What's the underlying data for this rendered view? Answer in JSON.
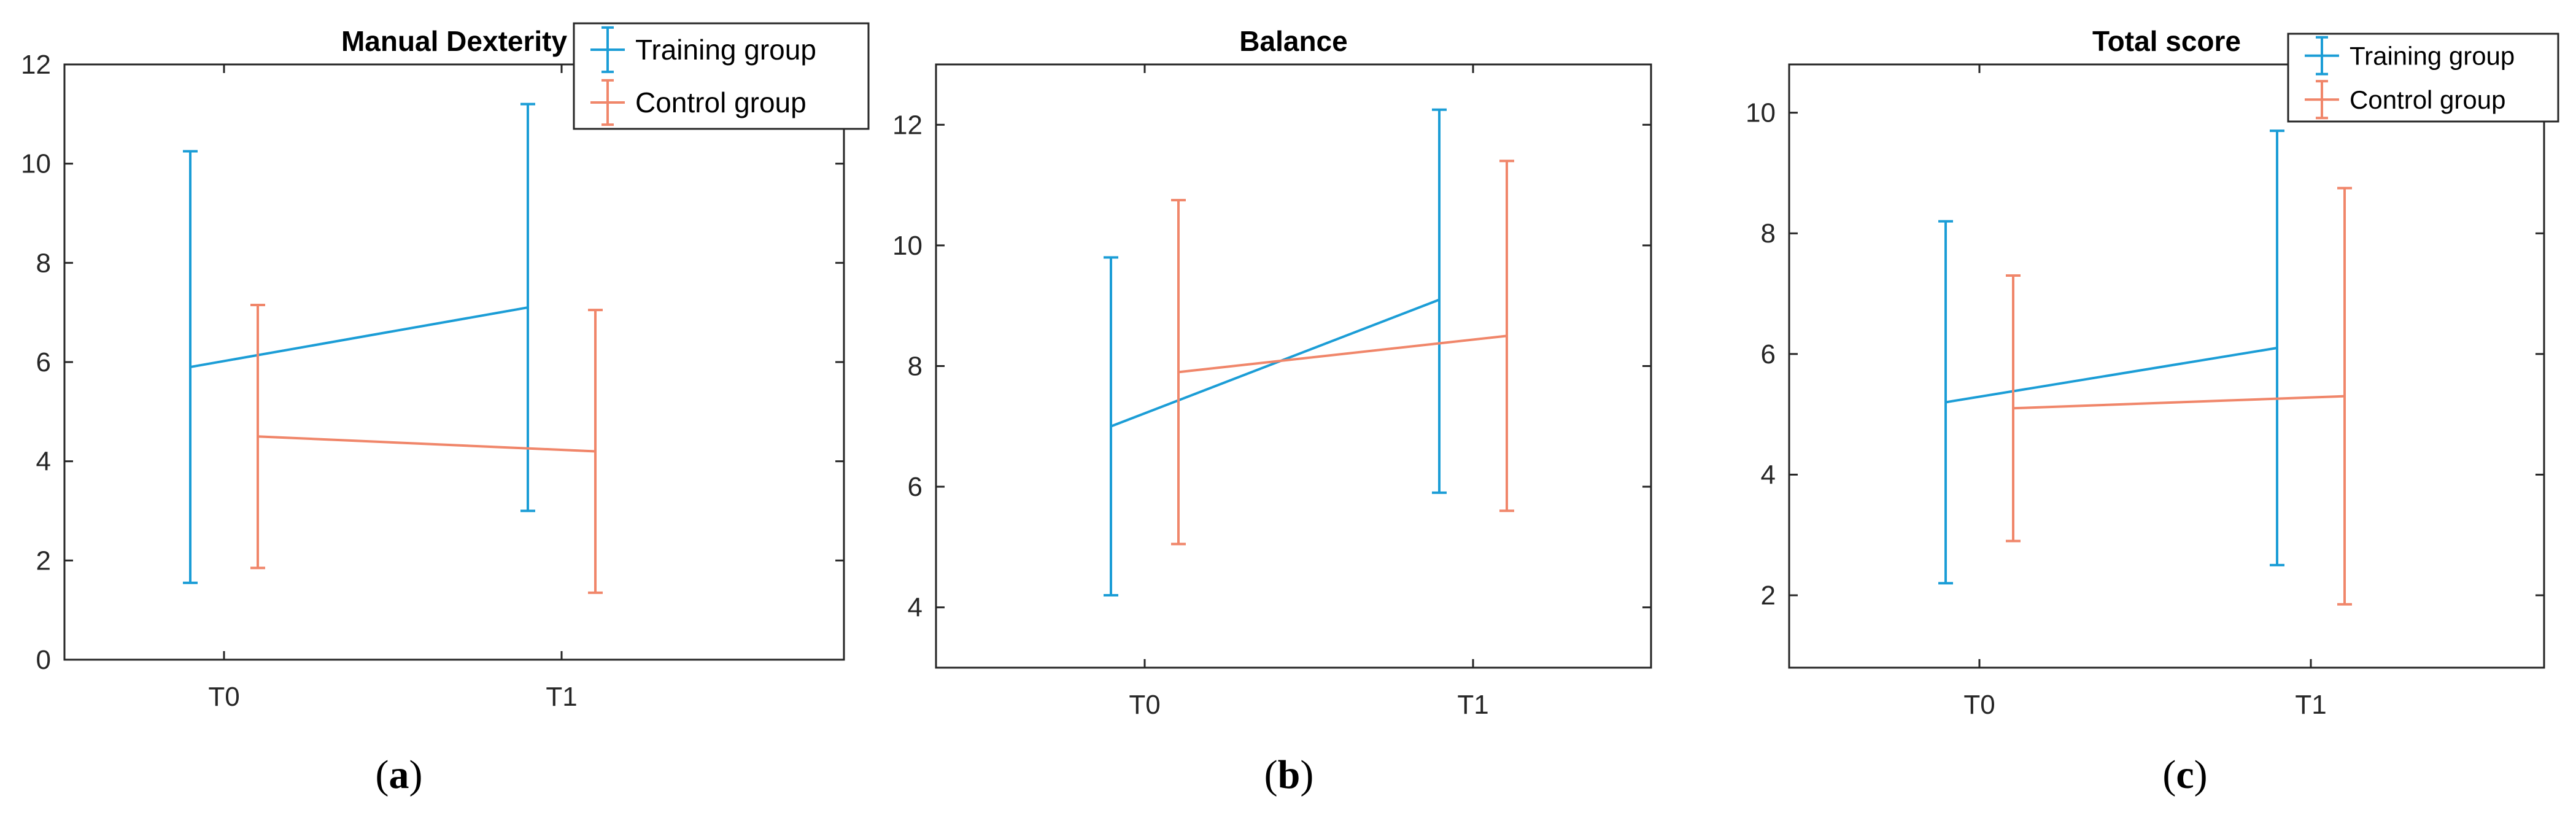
{
  "colors": {
    "training": "#1b9dd6",
    "control": "#f0866a",
    "axis": "#262626",
    "background": "#ffffff"
  },
  "captions": [
    {
      "open": "(",
      "letter": "a",
      "close": ")"
    },
    {
      "open": "(",
      "letter": "b",
      "close": ")"
    },
    {
      "open": "(",
      "letter": "c",
      "close": ")"
    }
  ],
  "chart_data": [
    {
      "type": "line",
      "title": "Manual Dexterity",
      "categories": [
        "T0",
        "T1"
      ],
      "ylim": [
        0,
        12
      ],
      "yticks": [
        0,
        2,
        4,
        6,
        8,
        10,
        12
      ],
      "grid": false,
      "legend": "top-right",
      "error_bars": true,
      "series": [
        {
          "name": "Training group",
          "values": [
            5.9,
            7.1
          ],
          "lower": [
            1.55,
            3.0
          ],
          "upper": [
            10.25,
            11.2
          ]
        },
        {
          "name": "Control group",
          "values": [
            4.5,
            4.2
          ],
          "lower": [
            1.85,
            1.35
          ],
          "upper": [
            7.15,
            7.05
          ]
        }
      ]
    },
    {
      "type": "line",
      "title": "Balance",
      "categories": [
        "T0",
        "T1"
      ],
      "ylim": [
        3,
        13
      ],
      "yticks": [
        4,
        6,
        8,
        10,
        12
      ],
      "grid": false,
      "legend": "none",
      "error_bars": true,
      "series": [
        {
          "name": "Training group",
          "values": [
            7.0,
            9.1
          ],
          "lower": [
            4.2,
            5.9
          ],
          "upper": [
            9.8,
            12.25
          ]
        },
        {
          "name": "Control group",
          "values": [
            7.9,
            8.5
          ],
          "lower": [
            5.05,
            5.6
          ],
          "upper": [
            10.75,
            11.4
          ]
        }
      ]
    },
    {
      "type": "line",
      "title": "Total score",
      "categories": [
        "T0",
        "T1"
      ],
      "ylim": [
        0.8,
        10.8
      ],
      "yticks": [
        2,
        4,
        6,
        8,
        10
      ],
      "grid": false,
      "legend": "top-right",
      "error_bars": true,
      "series": [
        {
          "name": "Training group",
          "values": [
            5.2,
            6.1
          ],
          "lower": [
            2.2,
            2.5
          ],
          "upper": [
            8.2,
            9.7
          ]
        },
        {
          "name": "Control group",
          "values": [
            5.1,
            5.3
          ],
          "lower": [
            2.9,
            1.85
          ],
          "upper": [
            7.3,
            8.75
          ]
        }
      ]
    }
  ]
}
